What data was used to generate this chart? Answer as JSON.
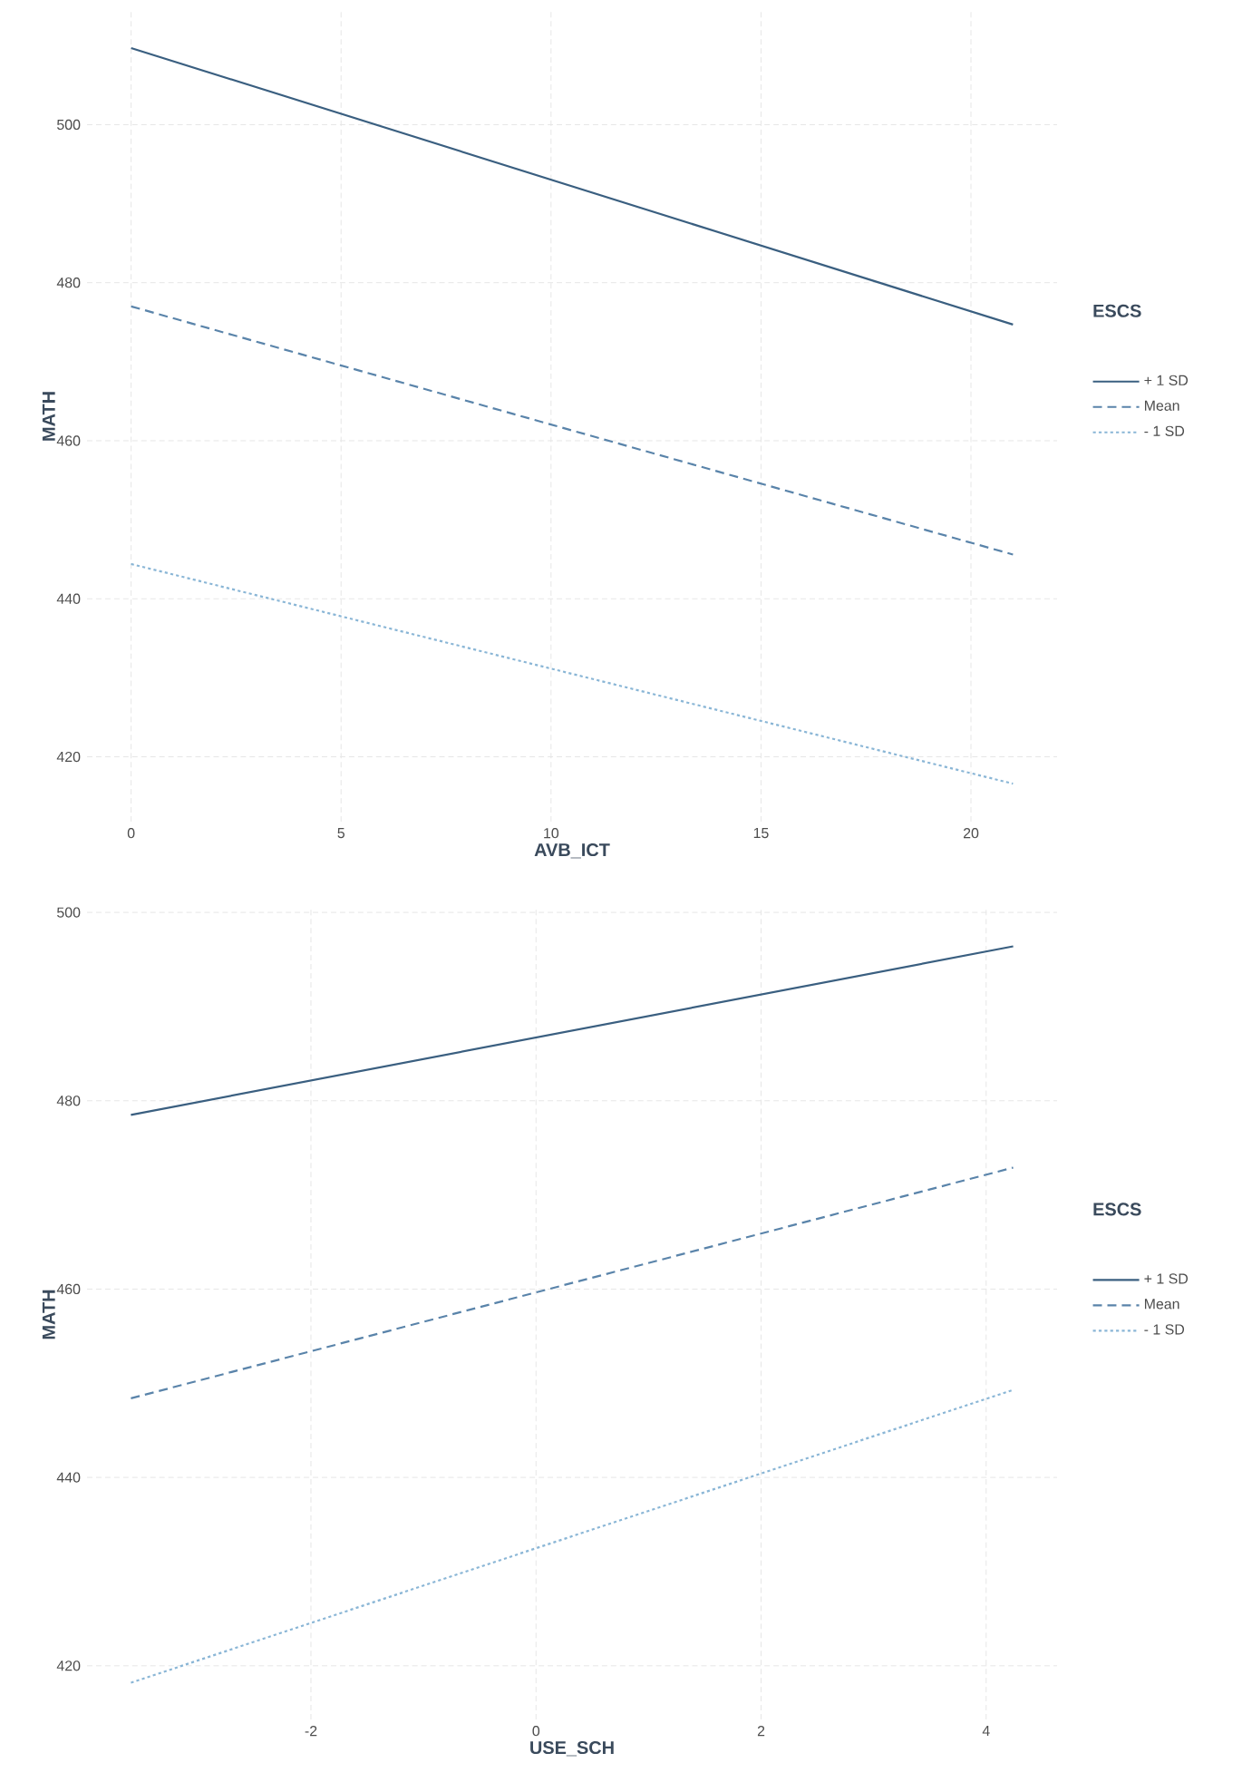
{
  "chart_data": [
    {
      "type": "line",
      "xlabel": "AVB_ICT",
      "ylabel": "MATH",
      "legend_title": "ESCS",
      "legend": "right",
      "grid": true,
      "xlim": [
        -1.05,
        22.05
      ],
      "ylim": [
        411.8,
        514.4
      ],
      "xticks": [
        0,
        5,
        10,
        15,
        20
      ],
      "yticks": [
        420,
        440,
        460,
        480,
        500
      ],
      "series": [
        {
          "name": "+ 1 SD",
          "color": "#3a5f80",
          "line_style": "solid",
          "x": [
            0,
            21
          ],
          "values": [
            509.7,
            474.7
          ]
        },
        {
          "name": "Mean",
          "color": "#5a84aa",
          "line_style": "dashed",
          "x": [
            0,
            21
          ],
          "values": [
            477.0,
            445.6
          ]
        },
        {
          "name": "- 1 SD",
          "color": "#8ab6d6",
          "line_style": "dotted",
          "x": [
            0,
            21
          ],
          "values": [
            444.4,
            416.6
          ]
        }
      ]
    },
    {
      "type": "line",
      "xlabel": "USE_SCH",
      "ylabel": "MATH",
      "legend_title": "ESCS",
      "legend": "right",
      "grid": true,
      "xlim": [
        -3.99,
        4.63
      ],
      "ylim": [
        414.3,
        500.3
      ],
      "xticks": [
        -2,
        0,
        2,
        4
      ],
      "yticks": [
        420,
        440,
        460,
        480,
        500
      ],
      "series": [
        {
          "name": "+ 1 SD",
          "color": "#3a5f80",
          "line_style": "solid",
          "x": [
            -3.6,
            4.24
          ],
          "values": [
            478.5,
            496.4
          ]
        },
        {
          "name": "Mean",
          "color": "#5a84aa",
          "line_style": "dashed",
          "x": [
            -3.6,
            4.24
          ],
          "values": [
            448.4,
            472.9
          ]
        },
        {
          "name": "- 1 SD",
          "color": "#8ab6d6",
          "line_style": "dotted",
          "x": [
            -3.6,
            4.24
          ],
          "values": [
            418.2,
            449.3
          ]
        }
      ]
    }
  ]
}
